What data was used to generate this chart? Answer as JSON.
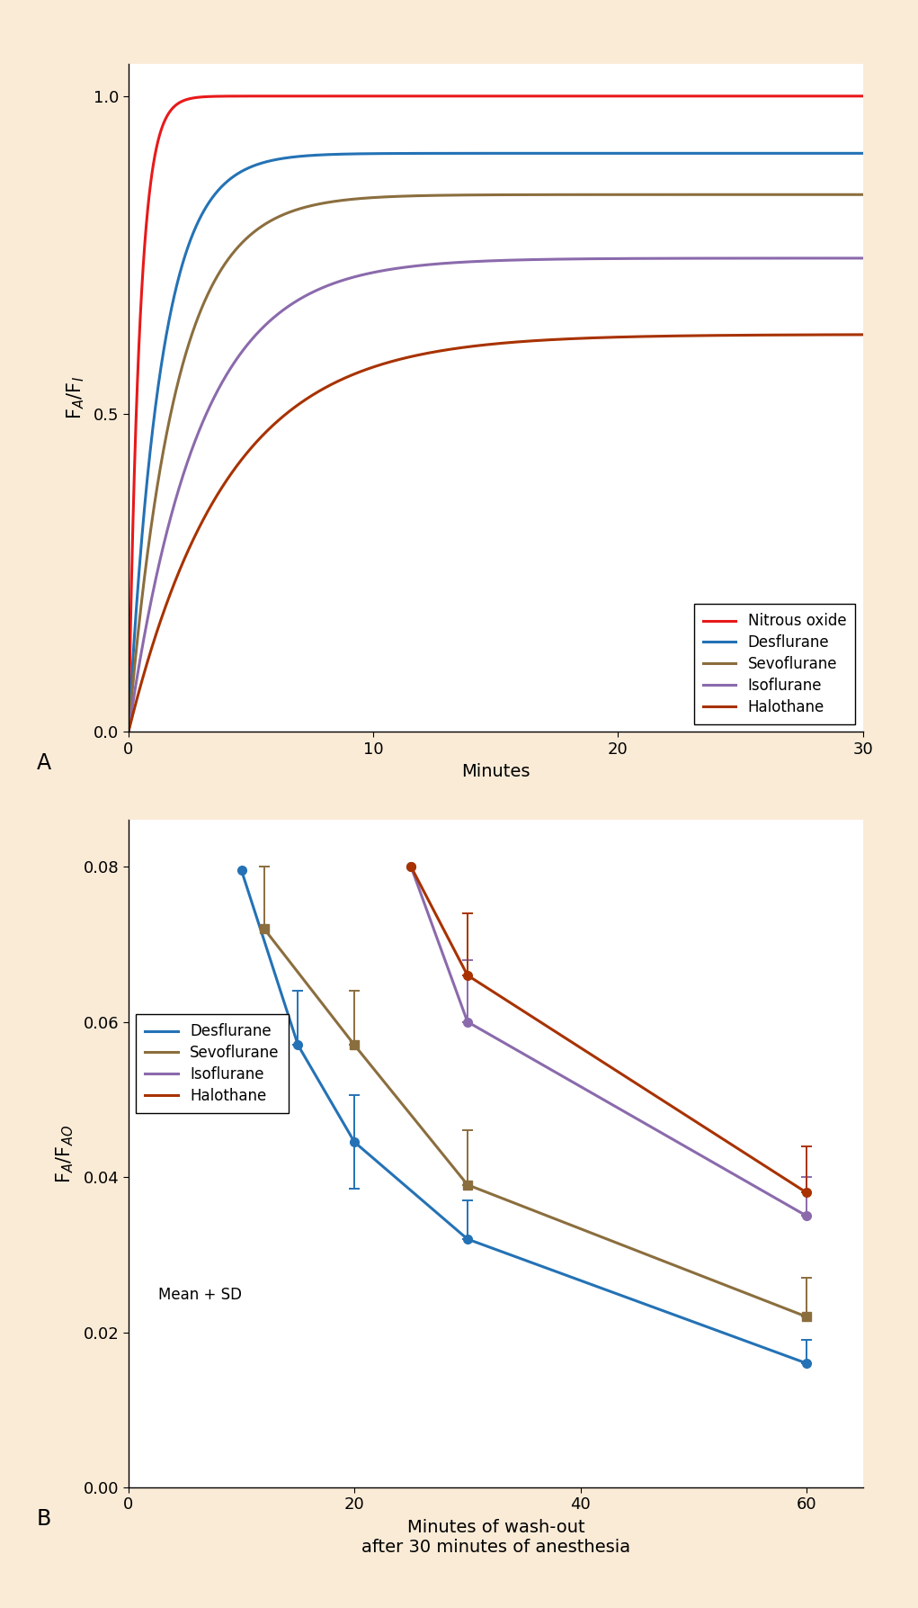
{
  "background_color": "#faebd7",
  "panel_A": {
    "ylabel": "F_A/F_I",
    "xlabel": "Minutes",
    "ylim": [
      0,
      1.05
    ],
    "xlim": [
      0,
      30
    ],
    "yticks": [
      0,
      0.5,
      1.0
    ],
    "xticks": [
      0,
      10,
      20,
      30
    ],
    "curves": {
      "Nitrous oxide": {
        "color": "#e8191a",
        "a": 1.0,
        "b": 2.2
      },
      "Desflurane": {
        "color": "#2472b5",
        "a": 0.91,
        "b": 0.75
      },
      "Sevoflurane": {
        "color": "#8b6e3e",
        "a": 0.845,
        "b": 0.52
      },
      "Isoflurane": {
        "color": "#8b6aac",
        "a": 0.745,
        "b": 0.35
      },
      "Halothane": {
        "color": "#a83200",
        "a": 0.625,
        "b": 0.25
      }
    }
  },
  "panel_B": {
    "ylabel": "F_A/F_AO",
    "xlabel": "Minutes of wash-out\nafter 30 minutes of anesthesia",
    "ylim": [
      0,
      0.086
    ],
    "xlim": [
      0,
      65
    ],
    "yticks": [
      0,
      0.02,
      0.04,
      0.06,
      0.08
    ],
    "xticks": [
      0,
      20,
      40,
      60
    ],
    "curves": {
      "Desflurane": {
        "color": "#2472b5",
        "marker": "o",
        "x": [
          10,
          15,
          20,
          30,
          60
        ],
        "y": [
          0.0795,
          0.057,
          0.0445,
          0.032,
          0.016
        ],
        "yerr_lo": [
          0.0,
          0.0,
          0.006,
          0.0,
          0.0
        ],
        "yerr_hi": [
          0.0,
          0.007,
          0.006,
          0.005,
          0.003
        ]
      },
      "Sevoflurane": {
        "color": "#8b6e3e",
        "marker": "s",
        "x": [
          12,
          20,
          30,
          60
        ],
        "y": [
          0.072,
          0.057,
          0.039,
          0.022
        ],
        "yerr_lo": [
          0.0,
          0.0,
          0.0,
          0.0
        ],
        "yerr_hi": [
          0.008,
          0.007,
          0.007,
          0.005
        ]
      },
      "Isoflurane": {
        "color": "#8b6aac",
        "marker": "o",
        "x": [
          25,
          30,
          60
        ],
        "y": [
          0.08,
          0.06,
          0.035
        ],
        "yerr_lo": [
          0.0,
          0.0,
          0.0
        ],
        "yerr_hi": [
          0.0,
          0.008,
          0.005
        ]
      },
      "Halothane": {
        "color": "#a83200",
        "marker": "o",
        "x": [
          25,
          30,
          60
        ],
        "y": [
          0.08,
          0.066,
          0.038
        ],
        "yerr_lo": [
          0.0,
          0.0,
          0.0
        ],
        "yerr_hi": [
          0.0,
          0.008,
          0.006
        ]
      }
    },
    "annotation": "Mean + SD"
  }
}
